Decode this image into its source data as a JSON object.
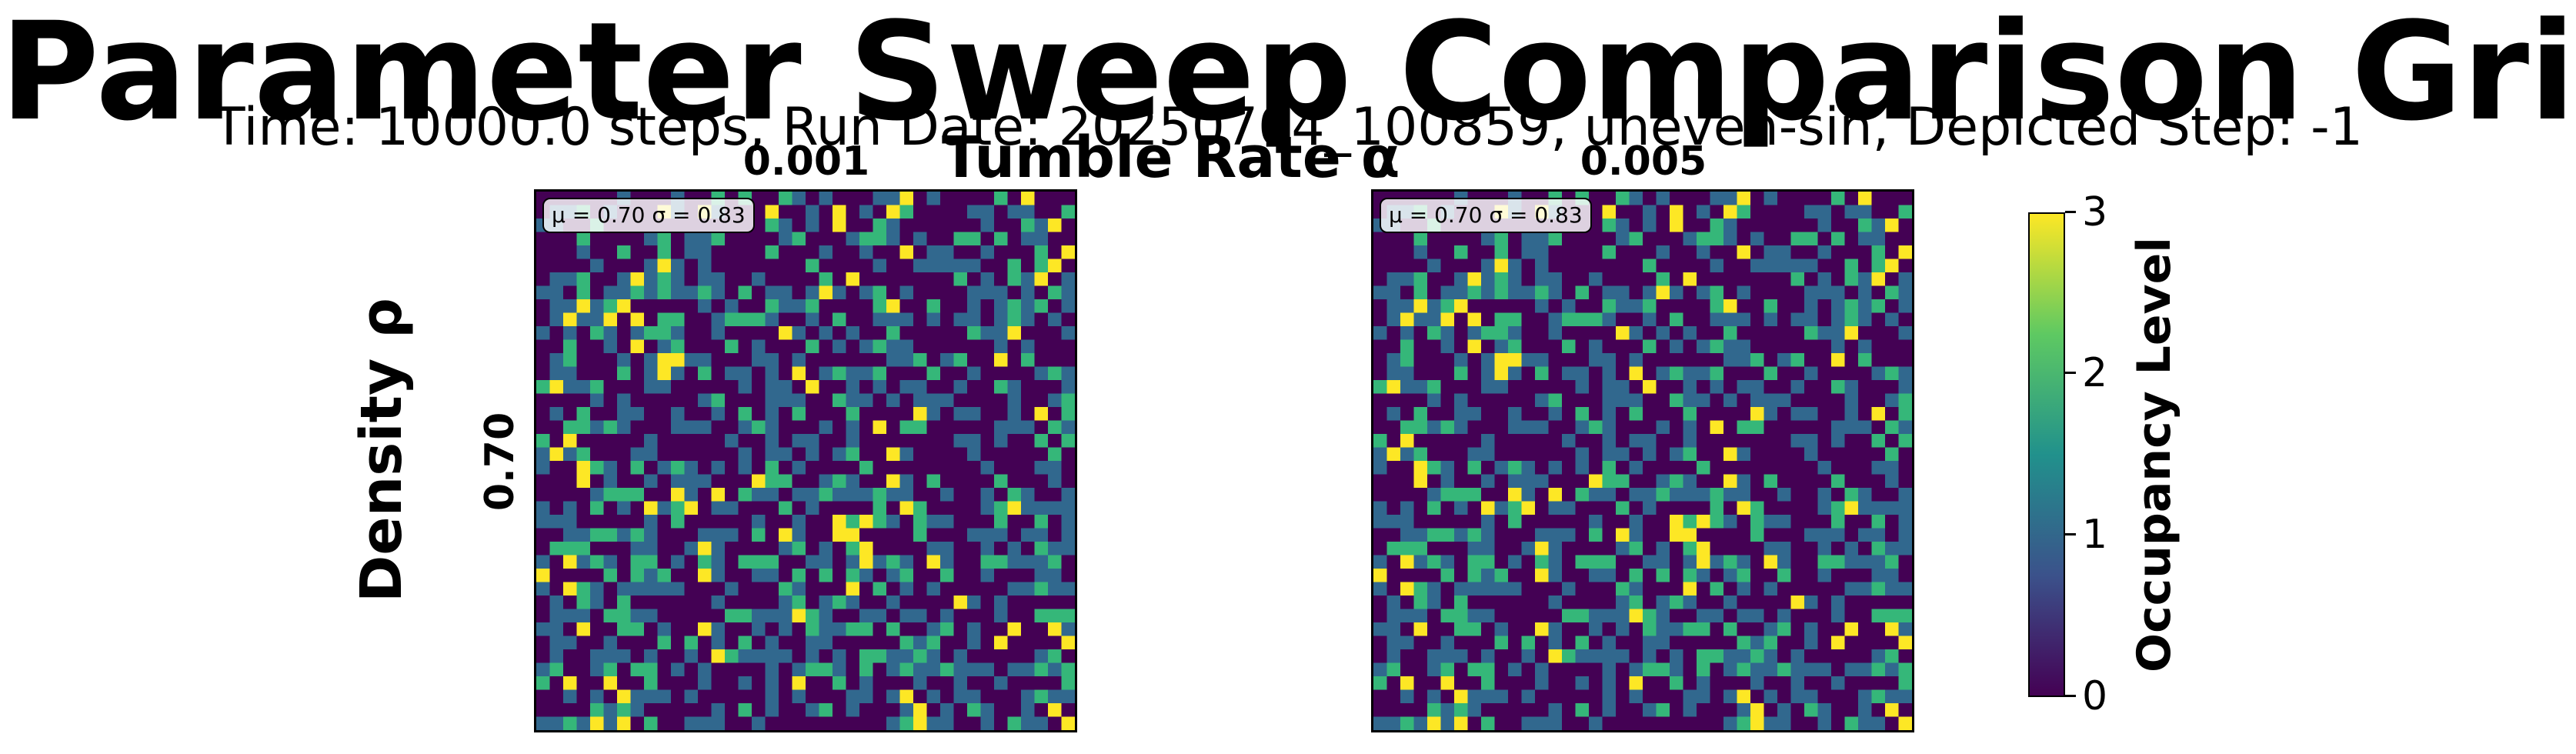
{
  "figure": {
    "title": "Parameter Sweep Comparison Grid",
    "subtitle": "Time: 10000.0 steps, Run Date: 20250704_100859, uneven-sin, Depicted Step: -1",
    "column_axis_title": "Tumble Rate α",
    "row_axis_title": "Density ρ",
    "colorbar_label": "Occupancy Level"
  },
  "chart_data": {
    "type": "heatmap",
    "title": "Parameter Sweep Comparison Grid",
    "column_parameter": "Tumble Rate α",
    "row_parameter": "Density ρ",
    "column_values": [
      "0.001",
      "0.005"
    ],
    "row_values": [
      "0.70"
    ],
    "grid_size": [
      40,
      40
    ],
    "value_range": [
      0,
      3
    ],
    "colormap": "viridis",
    "colors": [
      "#440154",
      "#31688e",
      "#35b779",
      "#fde725"
    ],
    "panels": [
      {
        "column": "0.001",
        "row": "0.70",
        "stats": "μ = 0.70  σ = 0.83",
        "mean": 0.7,
        "std": 0.83
      },
      {
        "column": "0.005",
        "row": "0.70",
        "stats": "μ = 0.70  σ = 0.83",
        "mean": 0.7,
        "std": 0.83
      }
    ],
    "colorbar": {
      "label": "Occupancy Level",
      "ticks": [
        "0",
        "1",
        "2",
        "3"
      ]
    }
  }
}
